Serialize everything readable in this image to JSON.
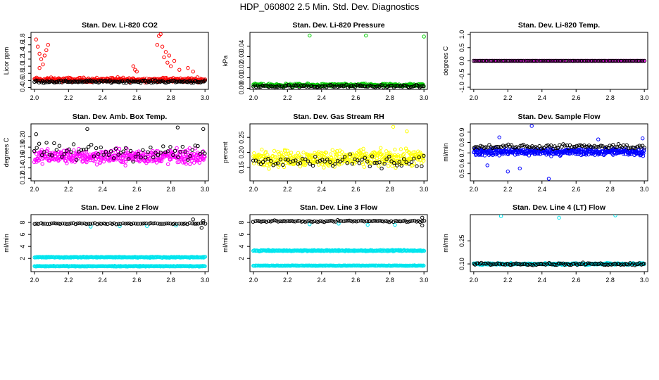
{
  "figure": {
    "title": "HDP_060802  2.5 Min. Std. Dev. Diagnostics"
  },
  "chart_data": [
    {
      "type": "scatter",
      "title": "Stan. Dev. Li-820 CO2",
      "xlabel": "",
      "ylabel": "Licor ppm",
      "xlim": [
        1.98,
        3.02
      ],
      "ylim": [
        0.35,
        1.95
      ],
      "xticks": [
        "2.0",
        "2.2",
        "2.4",
        "2.6",
        "2.8",
        "3.0"
      ],
      "xtick_values": [
        2.0,
        2.2,
        2.4,
        2.6,
        2.8,
        3.0
      ],
      "yticks": [
        "0.4",
        "0.6",
        "0.8",
        "1.0",
        "1.2",
        "1.4",
        "1.6",
        "1.8"
      ],
      "ytick_values": [
        0.4,
        0.6,
        0.8,
        1.0,
        1.2,
        1.4,
        1.6,
        1.8
      ],
      "series": [
        {
          "name": "red",
          "color": "#ff0000",
          "base": 0.62,
          "spread": 0.09,
          "count": 300,
          "extra": [
            [
              2.01,
              1.75
            ],
            [
              2.02,
              1.55
            ],
            [
              2.03,
              1.35
            ],
            [
              2.04,
              1.2
            ],
            [
              2.05,
              1.05
            ],
            [
              2.06,
              1.3
            ],
            [
              2.07,
              1.45
            ],
            [
              2.08,
              1.6
            ],
            [
              2.03,
              0.95
            ],
            [
              2.58,
              1.0
            ],
            [
              2.59,
              0.9
            ],
            [
              2.6,
              0.85
            ],
            [
              2.72,
              1.6
            ],
            [
              2.73,
              1.85
            ],
            [
              2.74,
              1.9
            ],
            [
              2.75,
              1.55
            ],
            [
              2.76,
              1.25
            ],
            [
              2.77,
              1.4
            ],
            [
              2.78,
              1.1
            ],
            [
              2.79,
              1.3
            ],
            [
              2.8,
              1.0
            ],
            [
              2.82,
              1.15
            ],
            [
              2.85,
              0.9
            ],
            [
              2.9,
              0.95
            ],
            [
              2.93,
              0.85
            ]
          ]
        },
        {
          "name": "black",
          "color": "#000000",
          "base": 0.57,
          "spread": 0.05,
          "count": 150,
          "extra": []
        }
      ]
    },
    {
      "type": "scatter",
      "title": "Stan. Dev. Li-820 Pressure",
      "xlabel": "",
      "ylabel": "kPa",
      "xlim": [
        1.98,
        3.02
      ],
      "ylim": [
        -0.001,
        0.053
      ],
      "xticks": [
        "2.0",
        "2.2",
        "2.4",
        "2.6",
        "2.8",
        "3.0"
      ],
      "xtick_values": [
        2.0,
        2.2,
        2.4,
        2.6,
        2.8,
        3.0
      ],
      "yticks": [
        "0.00",
        "0.01",
        "0.02",
        "0.03",
        "0.04"
      ],
      "ytick_values": [
        0.0,
        0.01,
        0.02,
        0.03,
        0.04
      ],
      "series": [
        {
          "name": "green",
          "color": "#00cc00",
          "base": 0.003,
          "spread": 0.002,
          "count": 300,
          "extra": [
            [
              2.33,
              0.05
            ],
            [
              2.66,
              0.05
            ],
            [
              3.0,
              0.049
            ]
          ]
        },
        {
          "name": "black",
          "color": "#000000",
          "base": 0.002,
          "spread": 0.002,
          "count": 120,
          "extra": []
        }
      ]
    },
    {
      "type": "scatter",
      "title": "Stan. Dev. Li-820 Temp.",
      "xlabel": "",
      "ylabel": "degrees C",
      "xlim": [
        1.98,
        3.02
      ],
      "ylim": [
        -1.08,
        1.08
      ],
      "xticks": [
        "2.0",
        "2.2",
        "2.4",
        "2.6",
        "2.8",
        "3.0"
      ],
      "xtick_values": [
        2.0,
        2.2,
        2.4,
        2.6,
        2.8,
        3.0
      ],
      "yticks": [
        "-1.0",
        "-0.5",
        "0.0",
        "0.5",
        "1.0"
      ],
      "ytick_values": [
        -1.0,
        -0.5,
        0.0,
        0.5,
        1.0
      ],
      "series": [
        {
          "name": "magenta",
          "color": "#ff00ff",
          "base": 0.0,
          "spread": 0.0,
          "count": 140,
          "extra": []
        },
        {
          "name": "black",
          "color": "#000000",
          "base": 0.0,
          "spread": 0.0,
          "count": 100,
          "extra": []
        }
      ]
    },
    {
      "type": "scatter",
      "title": "Stan. Dev. Amb. Box Temp.",
      "xlabel": "",
      "ylabel": "degrees C",
      "xlim": [
        1.98,
        3.02
      ],
      "ylim": [
        0.115,
        0.225
      ],
      "xticks": [
        "2.0",
        "2.2",
        "2.4",
        "2.6",
        "2.8",
        "3.0"
      ],
      "xtick_values": [
        2.0,
        2.2,
        2.4,
        2.6,
        2.8,
        3.0
      ],
      "yticks": [
        "0.12",
        "0.14",
        "0.16",
        "0.18",
        "0.20"
      ],
      "ytick_values": [
        0.12,
        0.14,
        0.16,
        0.18,
        0.2
      ],
      "series": [
        {
          "name": "magenta",
          "color": "#ff00ff",
          "base": 0.162,
          "spread": 0.02,
          "count": 420,
          "extra": []
        },
        {
          "name": "black",
          "color": "#000000",
          "base": 0.17,
          "spread": 0.025,
          "count": 70,
          "extra": [
            [
              2.01,
              0.205
            ],
            [
              2.31,
              0.215
            ],
            [
              2.84,
              0.218
            ],
            [
              2.99,
              0.215
            ]
          ]
        }
      ]
    },
    {
      "type": "scatter",
      "title": "Stan. Dev. Gas Stream RH",
      "xlabel": "",
      "ylabel": "percent",
      "xlim": [
        1.98,
        3.02
      ],
      "ylim": [
        0.105,
        0.295
      ],
      "xticks": [
        "2.0",
        "2.2",
        "2.4",
        "2.6",
        "2.8",
        "3.0"
      ],
      "xtick_values": [
        2.0,
        2.2,
        2.4,
        2.6,
        2.8,
        3.0
      ],
      "yticks": [
        "0.15",
        "0.20",
        "0.25"
      ],
      "ytick_values": [
        0.15,
        0.2,
        0.25
      ],
      "series": [
        {
          "name": "yellow",
          "color": "#ffff00",
          "base": 0.18,
          "spread": 0.04,
          "count": 420,
          "extra": [
            [
              2.82,
              0.285
            ],
            [
              2.9,
              0.27
            ]
          ]
        },
        {
          "name": "black",
          "color": "#000000",
          "base": 0.17,
          "spread": 0.03,
          "count": 70,
          "extra": []
        }
      ]
    },
    {
      "type": "scatter",
      "title": "Stan. Dev. Sample Flow",
      "xlabel": "",
      "ylabel": "ml/min",
      "xlim": [
        1.98,
        3.02
      ],
      "ylim": [
        0.43,
        0.98
      ],
      "xticks": [
        "2.0",
        "2.2",
        "2.4",
        "2.6",
        "2.8",
        "3.0"
      ],
      "xtick_values": [
        2.0,
        2.2,
        2.4,
        2.6,
        2.8,
        3.0
      ],
      "yticks": [
        "0.5",
        "0.6",
        "0.7",
        "0.8",
        "0.9"
      ],
      "ytick_values": [
        0.5,
        0.6,
        0.7,
        0.8,
        0.9
      ],
      "series": [
        {
          "name": "blue",
          "color": "#0000ff",
          "base": 0.71,
          "spread": 0.05,
          "count": 420,
          "extra": [
            [
              2.34,
              0.96
            ],
            [
              2.44,
              0.45
            ],
            [
              2.2,
              0.52
            ],
            [
              2.08,
              0.58
            ],
            [
              2.27,
              0.55
            ],
            [
              2.15,
              0.85
            ],
            [
              2.73,
              0.83
            ],
            [
              2.99,
              0.84
            ]
          ]
        },
        {
          "name": "black",
          "color": "#000000",
          "base": 0.76,
          "spread": 0.03,
          "count": 100,
          "extra": []
        }
      ]
    },
    {
      "type": "scatter",
      "title": "Stan. Dev. Line 2 Flow",
      "xlabel": "",
      "ylabel": "ml/min",
      "xlim": [
        1.98,
        3.02
      ],
      "ylim": [
        -0.2,
        9.3
      ],
      "xticks": [
        "2.0",
        "2.2",
        "2.4",
        "2.6",
        "2.8",
        "3.0"
      ],
      "xtick_values": [
        2.0,
        2.2,
        2.4,
        2.6,
        2.8,
        3.0
      ],
      "yticks": [
        "2",
        "4",
        "6",
        "8"
      ],
      "ytick_values": [
        2,
        4,
        6,
        8
      ],
      "series": [
        {
          "name": "cyan-upper",
          "color": "#00e5ee",
          "base": 2.2,
          "spread": 0.12,
          "count": 280,
          "extra": []
        },
        {
          "name": "cyan-lower",
          "color": "#00e5ee",
          "base": 0.7,
          "spread": 0.08,
          "count": 280,
          "extra": [
            [
              2.33,
              7.3
            ],
            [
              2.5,
              7.4
            ],
            [
              2.66,
              7.4
            ],
            [
              2.83,
              7.5
            ]
          ]
        },
        {
          "name": "black",
          "color": "#000000",
          "base": 7.8,
          "spread": 0.15,
          "count": 80,
          "extra": [
            [
              2.98,
              7.1
            ],
            [
              2.99,
              8.3
            ],
            [
              2.93,
              8.5
            ]
          ]
        }
      ]
    },
    {
      "type": "scatter",
      "title": "Stan. Dev. Line 3 Flow",
      "xlabel": "",
      "ylabel": "ml/min",
      "xlim": [
        1.98,
        3.02
      ],
      "ylim": [
        -0.2,
        9.3
      ],
      "xticks": [
        "2.0",
        "2.2",
        "2.4",
        "2.6",
        "2.8",
        "3.0"
      ],
      "xtick_values": [
        2.0,
        2.2,
        2.4,
        2.6,
        2.8,
        3.0
      ],
      "yticks": [
        "2",
        "4",
        "6",
        "8"
      ],
      "ytick_values": [
        2,
        4,
        6,
        8
      ],
      "series": [
        {
          "name": "cyan-upper",
          "color": "#00e5ee",
          "base": 3.3,
          "spread": 0.15,
          "count": 280,
          "extra": []
        },
        {
          "name": "cyan-lower",
          "color": "#00e5ee",
          "base": 0.8,
          "spread": 0.06,
          "count": 280,
          "extra": [
            [
              2.33,
              7.7
            ],
            [
              2.5,
              7.8
            ],
            [
              2.67,
              7.6
            ],
            [
              2.83,
              7.6
            ]
          ]
        },
        {
          "name": "black",
          "color": "#000000",
          "base": 8.2,
          "spread": 0.2,
          "count": 90,
          "extra": [
            [
              2.99,
              7.5
            ],
            [
              2.99,
              8.8
            ]
          ]
        }
      ]
    },
    {
      "type": "scatter",
      "title": "Stan. Dev. Line 4 (LT) Flow",
      "xlabel": "",
      "ylabel": "ml/min",
      "xlim": [
        1.98,
        3.02
      ],
      "ylim": [
        0.05,
        0.42
      ],
      "xticks": [
        "2.0",
        "2.2",
        "2.4",
        "2.6",
        "2.8",
        "3.0"
      ],
      "xtick_values": [
        2.0,
        2.2,
        2.4,
        2.6,
        2.8,
        3.0
      ],
      "yticks": [
        "0.10",
        "0.25"
      ],
      "ytick_values": [
        0.1,
        0.25
      ],
      "series": [
        {
          "name": "cyan",
          "color": "#00e5ee",
          "base": 0.1,
          "spread": 0.008,
          "count": 320,
          "extra": [
            [
              2.16,
              0.41
            ],
            [
              2.5,
              0.4
            ],
            [
              2.83,
              0.415
            ]
          ]
        },
        {
          "name": "black",
          "color": "#000000",
          "base": 0.1,
          "spread": 0.01,
          "count": 110,
          "extra": []
        }
      ]
    }
  ]
}
